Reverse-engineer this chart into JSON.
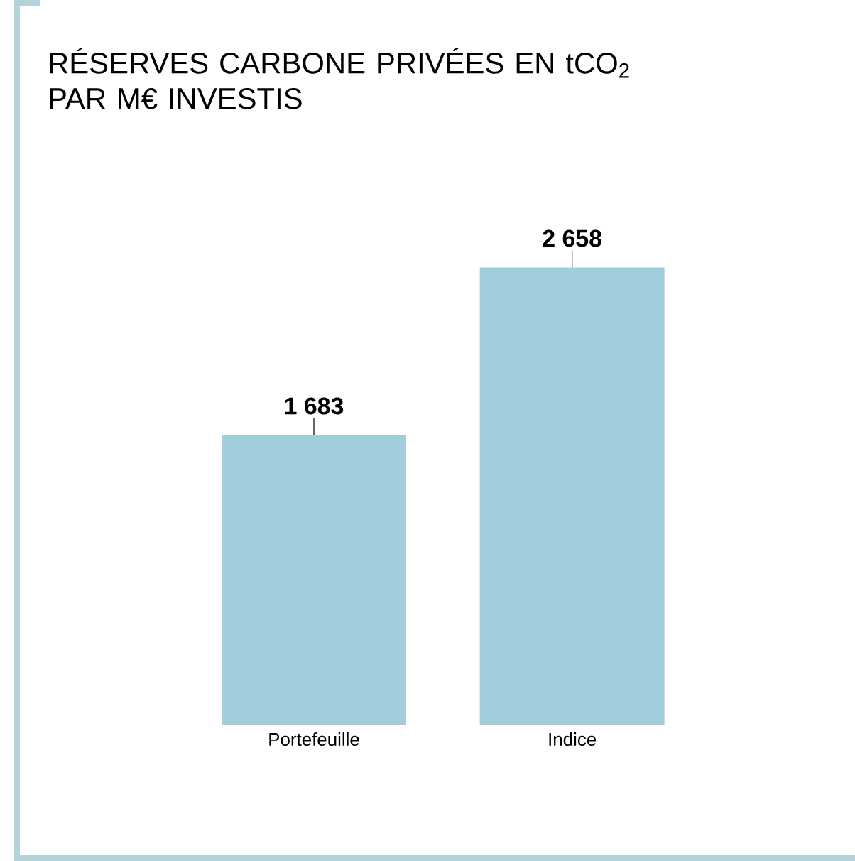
{
  "chart_data": {
    "type": "bar",
    "title": "RÉSERVES CARBONE PRIVÉES EN tCO$_{2}$ PAR M€ INVESTIS",
    "categories": [
      "Portefeuille",
      "Indice"
    ],
    "values": [
      1683,
      2658
    ],
    "value_labels": [
      "1 683",
      "2 658"
    ],
    "color": "#a2cedb"
  }
}
